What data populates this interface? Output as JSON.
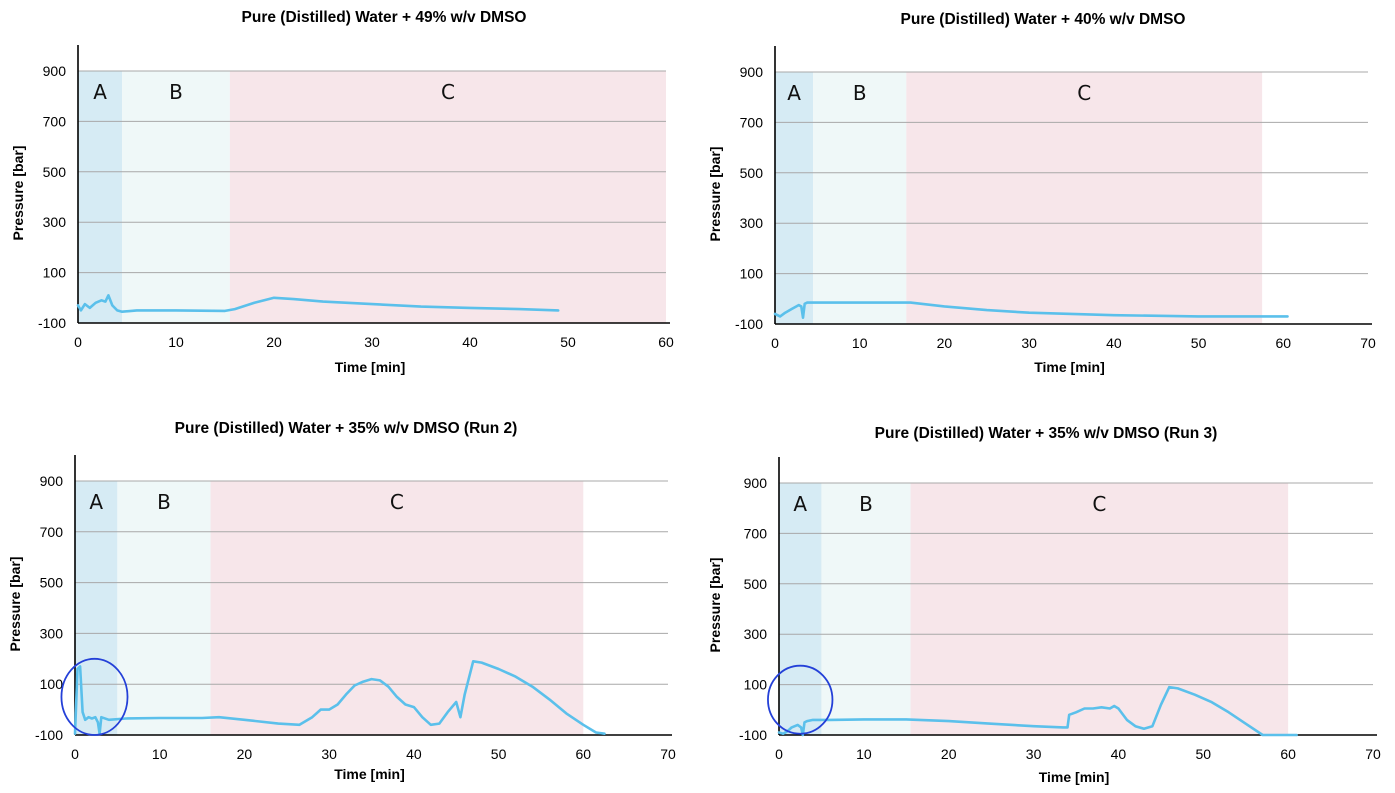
{
  "chart_data": [
    {
      "type": "line",
      "title": "Pure (Distilled) Water + 49% w/v DMSO",
      "xlabel": "Time [min]",
      "ylabel": "Pressure [bar]",
      "xlim": [
        0,
        60
      ],
      "ylim": [
        -100,
        900
      ],
      "xticks": [
        0,
        10,
        20,
        30,
        40,
        50,
        60
      ],
      "yticks": [
        -100,
        100,
        300,
        500,
        700,
        900
      ],
      "grid": true,
      "regions": [
        {
          "label": "A",
          "start": 0,
          "end": 4.5,
          "color": "#d6ebf4"
        },
        {
          "label": "B",
          "start": 4.5,
          "end": 15.5,
          "color": "#eff8f8"
        },
        {
          "label": "C",
          "start": 15.5,
          "end": 60,
          "color": "#f7e6ea"
        }
      ],
      "series": [
        {
          "color": "#5bc0eb",
          "x": [
            0,
            0.3,
            0.7,
            1.2,
            1.8,
            2.4,
            2.8,
            3.1,
            3.5,
            4.0,
            4.5,
            6,
            10,
            15,
            16,
            18,
            20,
            22,
            25,
            30,
            35,
            40,
            45,
            49
          ],
          "y": [
            -30,
            -50,
            -25,
            -40,
            -20,
            -10,
            -15,
            10,
            -30,
            -50,
            -55,
            -50,
            -50,
            -52,
            -45,
            -20,
            0,
            -5,
            -15,
            -25,
            -35,
            -40,
            -45,
            -50
          ]
        }
      ]
    },
    {
      "type": "line",
      "title": "Pure (Distilled) Water + 40% w/v DMSO",
      "xlabel": "Time [min]",
      "ylabel": "Pressure [bar]",
      "xlim": [
        0,
        70
      ],
      "ylim": [
        -100,
        900
      ],
      "xticks": [
        0,
        10,
        20,
        30,
        40,
        50,
        60,
        70
      ],
      "yticks": [
        -100,
        100,
        300,
        500,
        700,
        900
      ],
      "grid": true,
      "regions": [
        {
          "label": "A",
          "start": 0,
          "end": 4.5,
          "color": "#d6ebf4"
        },
        {
          "label": "B",
          "start": 4.5,
          "end": 15.5,
          "color": "#eff8f8"
        },
        {
          "label": "C",
          "start": 15.5,
          "end": 57.5,
          "color": "#f7e6ea"
        }
      ],
      "series": [
        {
          "color": "#5bc0eb",
          "x": [
            0,
            0.6,
            1.2,
            2.0,
            2.8,
            3.1,
            3.3,
            3.5,
            3.8,
            4.5,
            8,
            12,
            16,
            20,
            25,
            30,
            40,
            50,
            60.5
          ],
          "y": [
            -60,
            -70,
            -55,
            -40,
            -25,
            -30,
            -75,
            -20,
            -15,
            -15,
            -15,
            -15,
            -15,
            -30,
            -45,
            -55,
            -65,
            -70,
            -70
          ]
        }
      ]
    },
    {
      "type": "line",
      "title": "Pure (Distilled) Water + 35% w/v DMSO (Run 2)",
      "xlabel": "Time [min]",
      "ylabel": "Pressure [bar]",
      "xlim": [
        0,
        70
      ],
      "ylim": [
        -100,
        900
      ],
      "xticks": [
        0,
        10,
        20,
        30,
        40,
        50,
        60,
        70
      ],
      "yticks": [
        -100,
        100,
        300,
        500,
        700,
        900
      ],
      "grid": true,
      "regions": [
        {
          "label": "A",
          "start": 0,
          "end": 5,
          "color": "#d6ebf4"
        },
        {
          "label": "B",
          "start": 5,
          "end": 16,
          "color": "#eff8f8"
        },
        {
          "label": "C",
          "start": 16,
          "end": 60,
          "color": "#f7e6ea"
        }
      ],
      "annotations": [
        {
          "type": "ellipse",
          "cx": 2.3,
          "cy": 50,
          "rx": 3.9,
          "ry": 150,
          "color": "#2440d8"
        }
      ],
      "series": [
        {
          "color": "#5bc0eb",
          "x": [
            0,
            0.3,
            0.6,
            0.9,
            1.2,
            1.6,
            2.0,
            2.4,
            2.7,
            2.9,
            3.1,
            4,
            6,
            10,
            15,
            17,
            20,
            24,
            26.5,
            27,
            28,
            29,
            30,
            31,
            32,
            33,
            34,
            35,
            36,
            37,
            38,
            39,
            40,
            41,
            42,
            43,
            44,
            45,
            45.5,
            46,
            47,
            48,
            50,
            52,
            54,
            56,
            58,
            60,
            61.5,
            62.5
          ],
          "y": [
            -95,
            160,
            170,
            -10,
            -40,
            -30,
            -35,
            -30,
            -50,
            -95,
            -30,
            -40,
            -35,
            -33,
            -33,
            -30,
            -40,
            -55,
            -60,
            -50,
            -30,
            0,
            0,
            20,
            60,
            95,
            110,
            120,
            115,
            90,
            50,
            20,
            10,
            -30,
            -60,
            -55,
            -10,
            30,
            -30,
            60,
            190,
            185,
            160,
            130,
            90,
            40,
            -15,
            -60,
            -90,
            -95
          ]
        }
      ]
    },
    {
      "type": "line",
      "title": "Pure (Distilled) Water + 35% w/v DMSO (Run 3)",
      "xlabel": "Time [min]",
      "ylabel": "Pressure [bar]",
      "xlim": [
        0,
        70
      ],
      "ylim": [
        -100,
        900
      ],
      "xticks": [
        0,
        10,
        20,
        30,
        40,
        50,
        60,
        70
      ],
      "yticks": [
        -100,
        100,
        300,
        500,
        700,
        900
      ],
      "grid": true,
      "regions": [
        {
          "label": "A",
          "start": 0,
          "end": 5,
          "color": "#d6ebf4"
        },
        {
          "label": "B",
          "start": 5,
          "end": 15.5,
          "color": "#eff8f8"
        },
        {
          "label": "C",
          "start": 15.5,
          "end": 60,
          "color": "#f7e6ea"
        }
      ],
      "annotations": [
        {
          "type": "ellipse",
          "cx": 2.5,
          "cy": 40,
          "rx": 3.8,
          "ry": 135,
          "color": "#2440d8"
        }
      ],
      "series": [
        {
          "color": "#5bc0eb",
          "x": [
            0,
            0.5,
            1,
            1.5,
            2.2,
            2.6,
            2.8,
            3.0,
            3.3,
            4,
            6,
            10,
            15,
            20,
            25,
            30,
            33.5,
            34,
            34.2,
            35,
            36,
            37,
            38,
            39,
            39.5,
            40,
            41,
            42,
            43,
            44,
            45,
            46,
            47,
            49,
            51,
            53,
            55,
            57,
            58,
            61
          ],
          "y": [
            -90,
            -95,
            -85,
            -70,
            -60,
            -70,
            -100,
            -50,
            -45,
            -40,
            -40,
            -38,
            -38,
            -45,
            -55,
            -65,
            -70,
            -70,
            -20,
            -10,
            5,
            5,
            10,
            5,
            15,
            5,
            -40,
            -65,
            -75,
            -65,
            20,
            90,
            85,
            60,
            30,
            -10,
            -55,
            -100,
            -100,
            -100
          ]
        }
      ]
    }
  ]
}
